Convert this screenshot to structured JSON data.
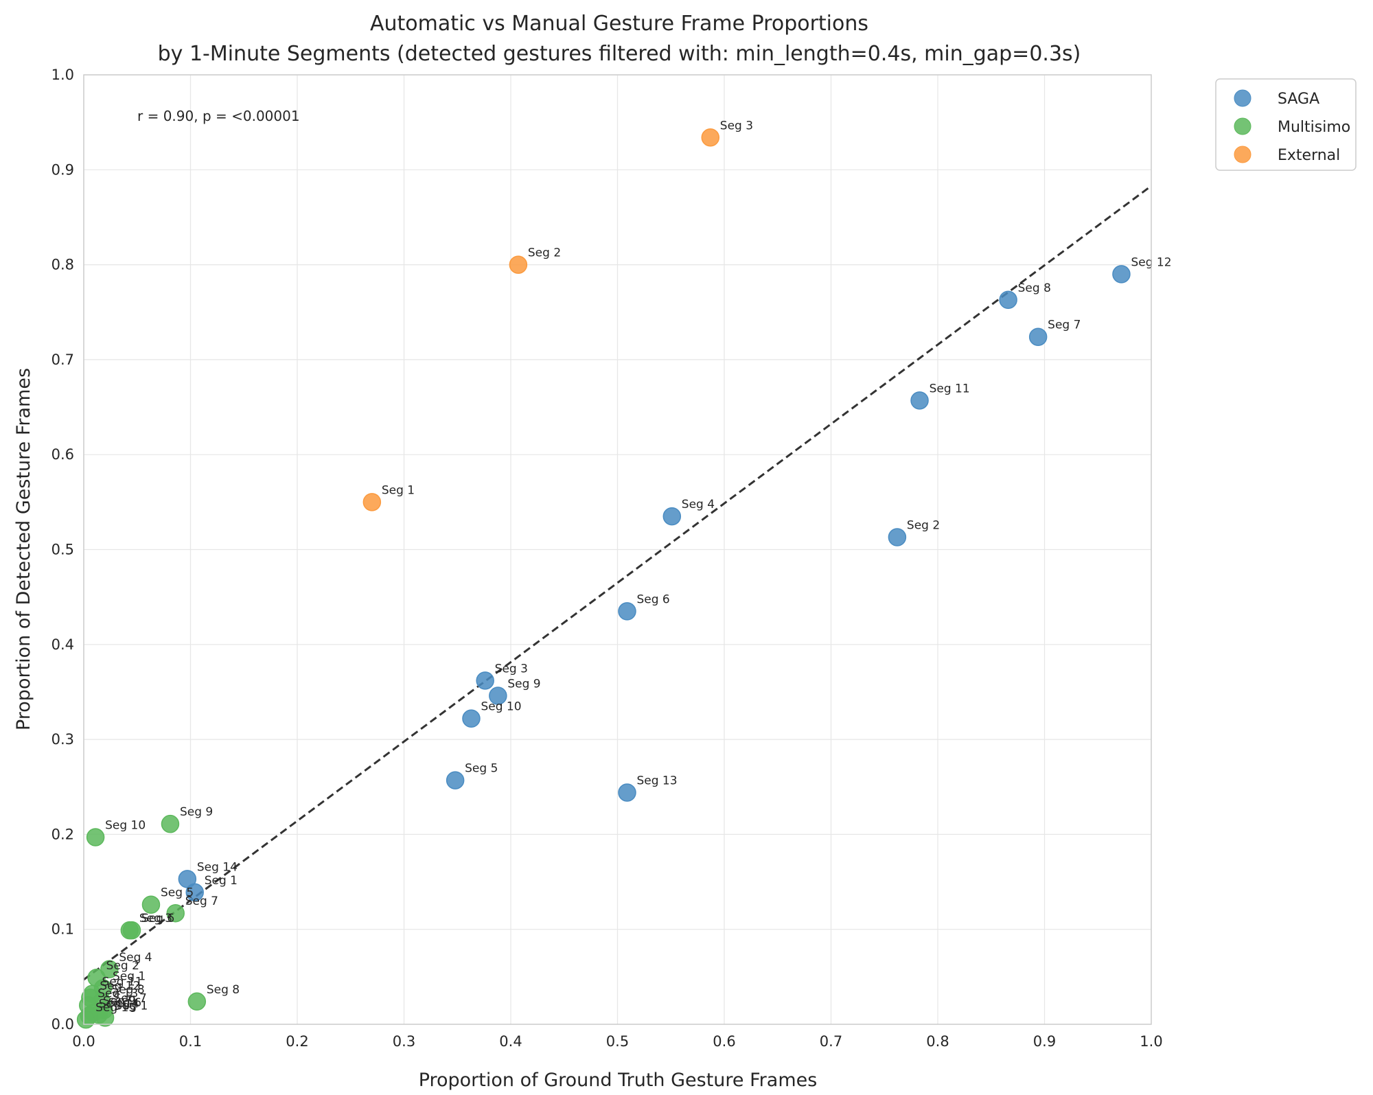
{
  "chart_data": {
    "type": "scatter",
    "title_lines": [
      "Automatic vs Manual Gesture Frame Proportions",
      "by 1-Minute Segments (detected gestures filtered with: min_length=0.4s, min_gap=0.3s)"
    ],
    "xlabel": "Proportion of Ground Truth Gesture Frames",
    "ylabel": "Proportion of Detected Gesture Frames",
    "xlim": [
      0.0,
      1.0
    ],
    "ylim": [
      0.0,
      1.0
    ],
    "xticks": [
      "0.0",
      "0.1",
      "0.2",
      "0.3",
      "0.4",
      "0.5",
      "0.6",
      "0.7",
      "0.8",
      "0.9",
      "1.0"
    ],
    "yticks": [
      "0.0",
      "0.1",
      "0.2",
      "0.3",
      "0.4",
      "0.5",
      "0.6",
      "0.7",
      "0.8",
      "0.9",
      "1.0"
    ],
    "grid": true,
    "annotation": "r = 0.90, p = <0.00001",
    "legend_position": "outside-top-right",
    "trend_line": {
      "style": "dashed",
      "color": "#333333",
      "x": [
        0.0,
        1.0
      ],
      "y": [
        0.047,
        0.883
      ]
    },
    "series": [
      {
        "name": "SAGA",
        "color": "#4a8cc2",
        "points": [
          {
            "label": "Seg 12",
            "x": 0.972,
            "y": 0.79
          },
          {
            "label": "Seg 8",
            "x": 0.866,
            "y": 0.763
          },
          {
            "label": "Seg 7",
            "x": 0.894,
            "y": 0.724
          },
          {
            "label": "Seg 11",
            "x": 0.783,
            "y": 0.657
          },
          {
            "label": "Seg 4",
            "x": 0.551,
            "y": 0.535
          },
          {
            "label": "Seg 2",
            "x": 0.762,
            "y": 0.513
          },
          {
            "label": "Seg 6",
            "x": 0.509,
            "y": 0.435
          },
          {
            "label": "Seg 3",
            "x": 0.376,
            "y": 0.362
          },
          {
            "label": "Seg 9",
            "x": 0.388,
            "y": 0.346
          },
          {
            "label": "Seg 10",
            "x": 0.363,
            "y": 0.322
          },
          {
            "label": "Seg 5",
            "x": 0.348,
            "y": 0.257
          },
          {
            "label": "Seg 13",
            "x": 0.509,
            "y": 0.244
          },
          {
            "label": "Seg 14",
            "x": 0.097,
            "y": 0.153
          },
          {
            "label": "Seg 1",
            "x": 0.104,
            "y": 0.139
          }
        ]
      },
      {
        "name": "Multisimo",
        "color": "#5cb85c",
        "points": [
          {
            "label": "Seg 10",
            "x": 0.011,
            "y": 0.197
          },
          {
            "label": "Seg 9",
            "x": 0.081,
            "y": 0.211
          },
          {
            "label": "Seg 5",
            "x": 0.063,
            "y": 0.126
          },
          {
            "label": "Seg 7",
            "x": 0.086,
            "y": 0.117
          },
          {
            "label": "Seg 3",
            "x": 0.043,
            "y": 0.099
          },
          {
            "label": "Seg 6",
            "x": 0.045,
            "y": 0.099
          },
          {
            "label": "Seg 4",
            "x": 0.024,
            "y": 0.058
          },
          {
            "label": "Seg 2",
            "x": 0.012,
            "y": 0.049
          },
          {
            "label": "Seg 1",
            "x": 0.018,
            "y": 0.038
          },
          {
            "label": "Seg 11",
            "x": 0.008,
            "y": 0.032
          },
          {
            "label": "Seg 12",
            "x": 0.006,
            "y": 0.028
          },
          {
            "label": "Seg 8",
            "x": 0.017,
            "y": 0.024
          },
          {
            "label": "Seg 13",
            "x": 0.004,
            "y": 0.02
          },
          {
            "label": "Seg 8",
            "x": 0.106,
            "y": 0.024
          },
          {
            "label": "Seg 7",
            "x": 0.019,
            "y": 0.015
          },
          {
            "label": "Seg 9",
            "x": 0.009,
            "y": 0.012
          },
          {
            "label": "Seg 6",
            "x": 0.014,
            "y": 0.01
          },
          {
            "label": "Seg 14",
            "x": 0.005,
            "y": 0.009
          },
          {
            "label": "Seg 1",
            "x": 0.02,
            "y": 0.007
          },
          {
            "label": "Seg 15",
            "x": 0.002,
            "y": 0.005
          }
        ]
      },
      {
        "name": "External",
        "color": "#fb9a3e",
        "points": [
          {
            "label": "Seg 3",
            "x": 0.587,
            "y": 0.934
          },
          {
            "label": "Seg 2",
            "x": 0.407,
            "y": 0.8
          },
          {
            "label": "Seg 1",
            "x": 0.27,
            "y": 0.55
          }
        ]
      }
    ]
  }
}
